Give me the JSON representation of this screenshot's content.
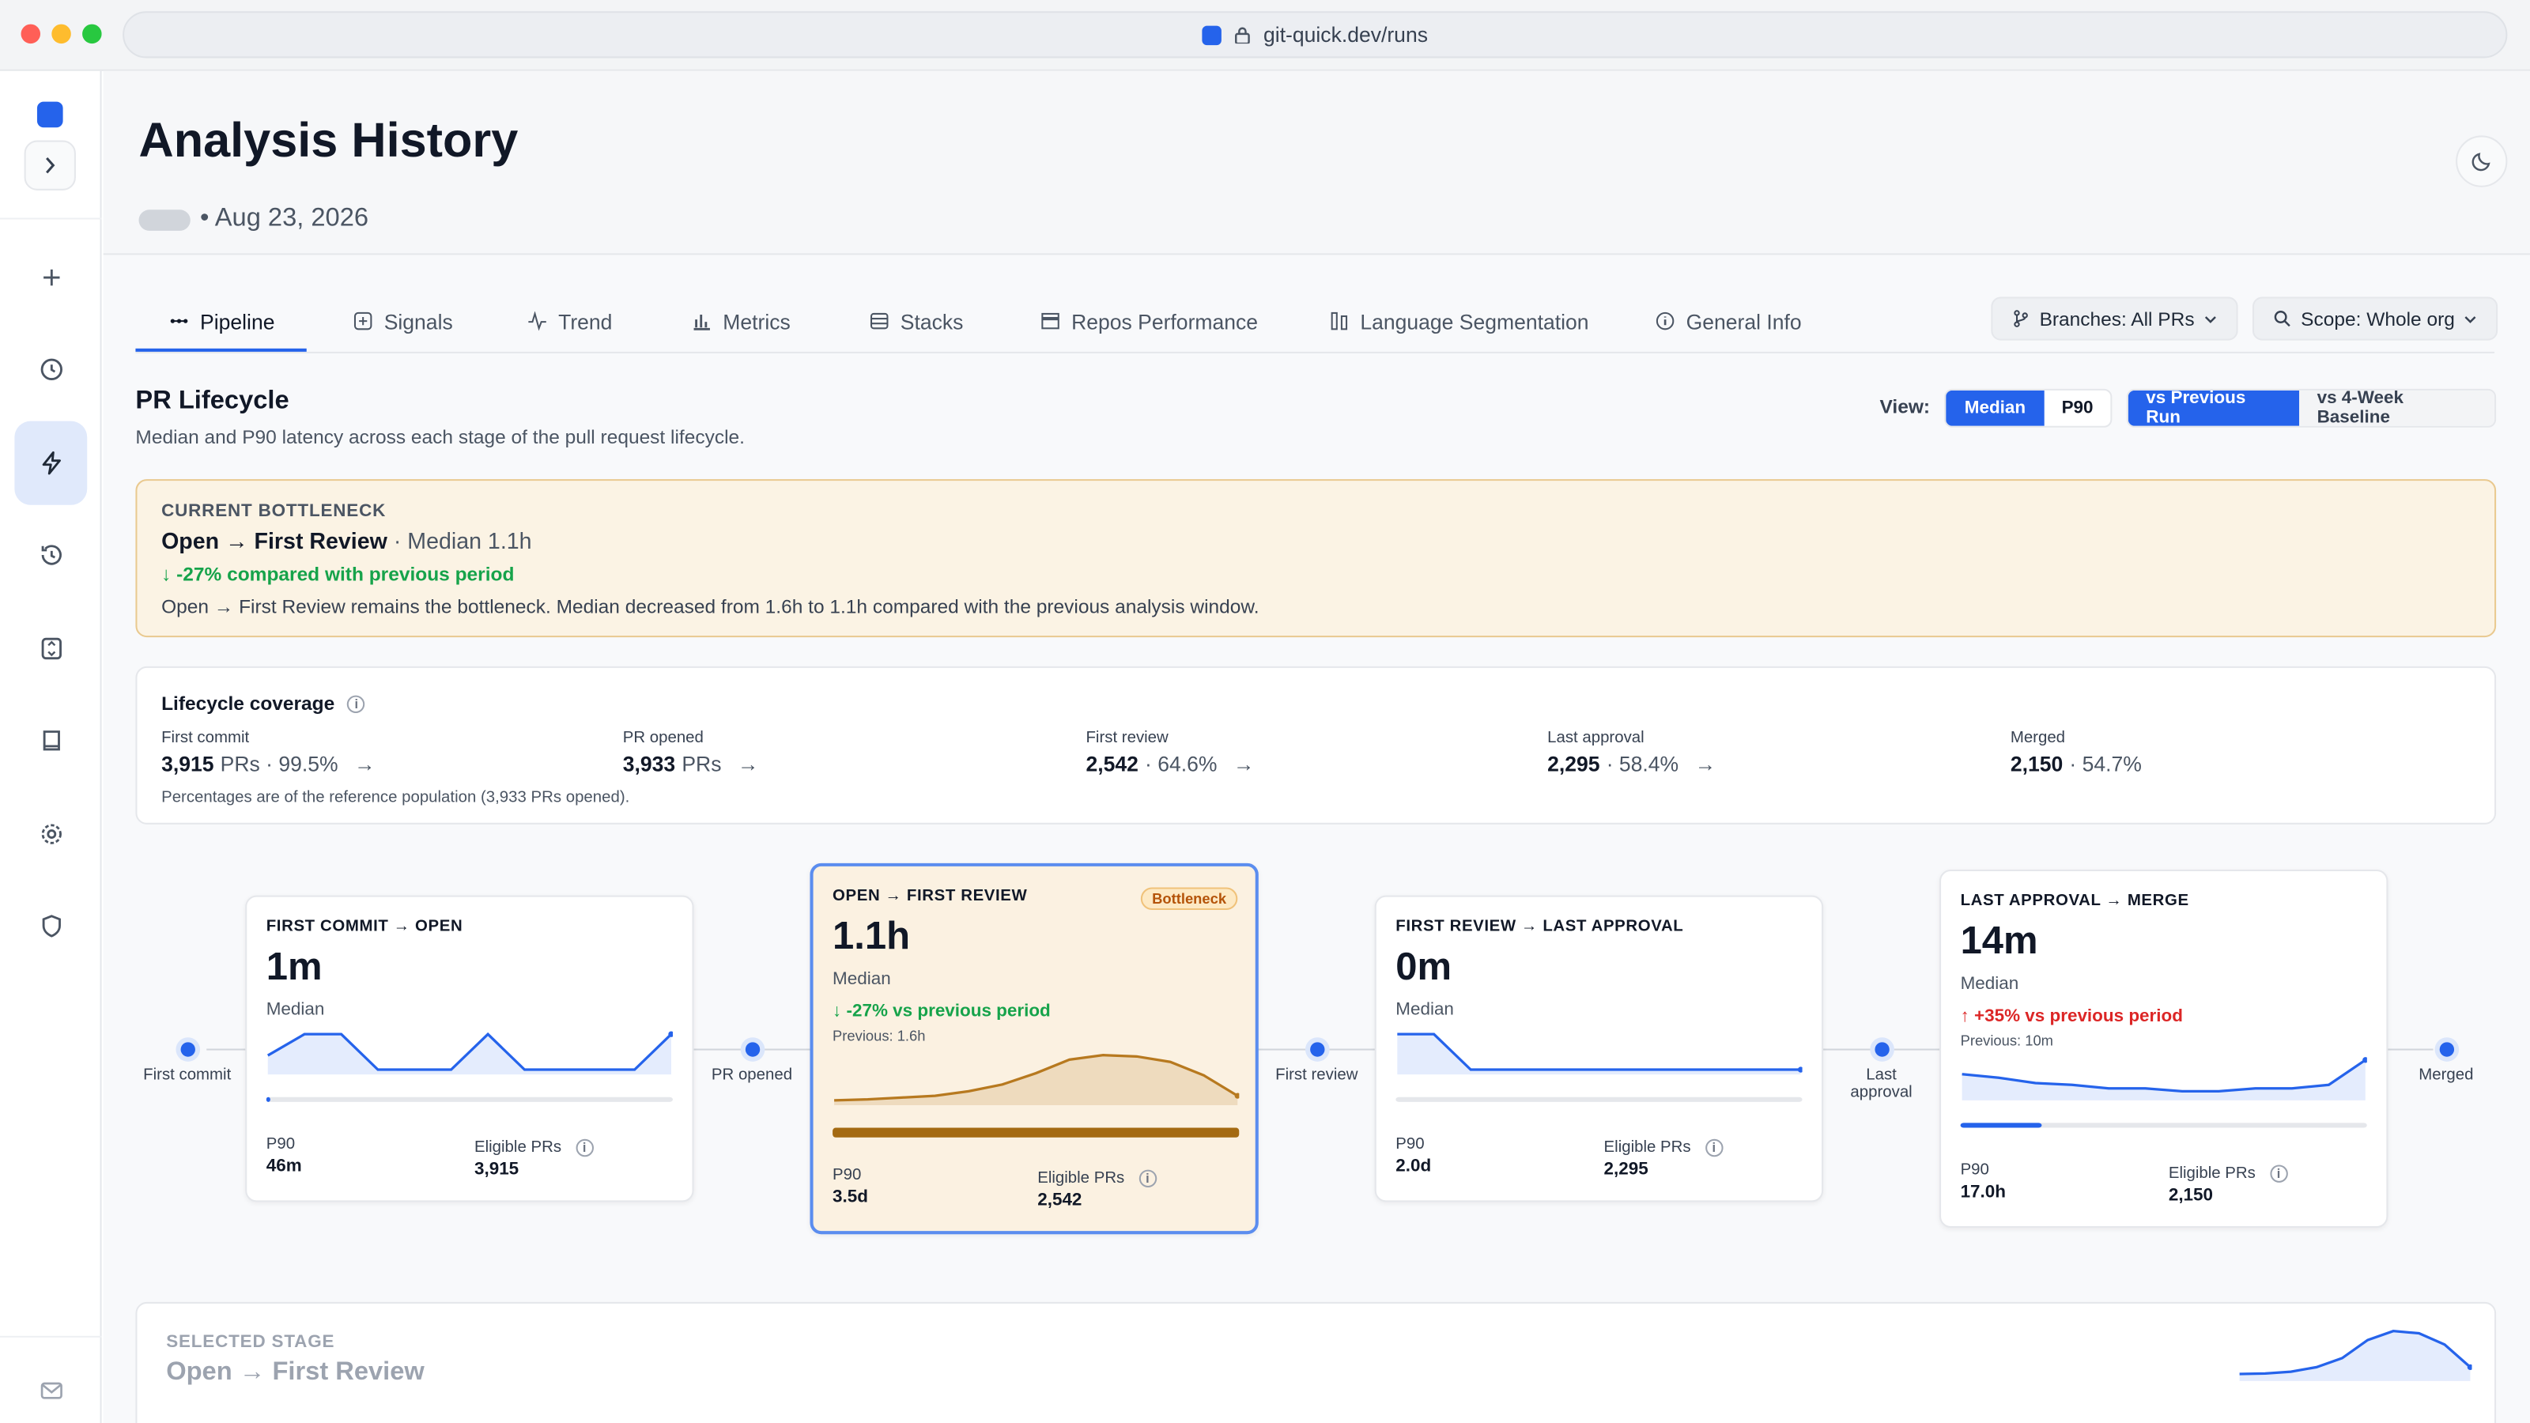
{
  "browser": {
    "url": "git-quick.dev/runs"
  },
  "header": {
    "title": "Analysis History",
    "date": "• Aug 23, 2026"
  },
  "tabs": [
    {
      "label": "Pipeline"
    },
    {
      "label": "Signals"
    },
    {
      "label": "Trend"
    },
    {
      "label": "Metrics"
    },
    {
      "label": "Stacks"
    },
    {
      "label": "Repos Performance"
    },
    {
      "label": "Language Segmentation"
    },
    {
      "label": "General Info"
    }
  ],
  "filters": {
    "branches": "Branches: All PRs",
    "scope": "Scope: Whole org"
  },
  "section": {
    "title": "PR Lifecycle",
    "description": "Median and P90 latency across each stage of the pull request lifecycle.",
    "view_label": "View:",
    "view_median": "Median",
    "view_p90": "P90",
    "cmp_prev": "vs Previous Run",
    "cmp_baseline": "vs 4-Week Baseline"
  },
  "bottleneck": {
    "label": "CURRENT BOTTLENECK",
    "stage": "Open → First Review",
    "median": " · Median 1.1h",
    "delta": "↓ -27% compared with previous period",
    "text": "Open → First Review remains the bottleneck. Median decreased from 1.6h to 1.1h compared with the previous analysis window."
  },
  "coverage": {
    "title": "Lifecycle coverage",
    "info": "i",
    "items": [
      {
        "label": "First commit",
        "value": "3,915",
        "unit": "PRs · 99.5%",
        "arrow": "→"
      },
      {
        "label": "PR opened",
        "value": "3,933",
        "unit": "PRs",
        "arrow": "→"
      },
      {
        "label": "First review",
        "value": "2,542",
        "unit": "· 64.6%",
        "arrow": "→"
      },
      {
        "label": "Last approval",
        "value": "2,295",
        "unit": "· 58.4%",
        "arrow": "→"
      },
      {
        "label": "Merged",
        "value": "2,150",
        "unit": "· 54.7%",
        "arrow": ""
      }
    ],
    "note": "Percentages are of the reference population (3,933 PRs opened)."
  },
  "nodes": [
    {
      "label": "First commit"
    },
    {
      "label": "PR opened"
    },
    {
      "label": "First review"
    },
    {
      "label": "Last approval"
    },
    {
      "label": "Merged"
    }
  ],
  "stages": [
    {
      "title": "FIRST COMMIT → OPEN",
      "value": "1m",
      "median_label": "Median",
      "p90_label": "P90",
      "p90": "46m",
      "eligible_label": "Eligible PRs",
      "eligible": "3,915",
      "progress": 0.01,
      "trend": [
        0.4,
        1.0,
        1.0,
        0.0,
        0.0,
        0.0,
        1.0,
        0.0,
        0.0,
        0.0,
        0.0,
        1.0
      ]
    },
    {
      "title": "OPEN → FIRST REVIEW",
      "value": "1.1h",
      "median_label": "Median",
      "badge": "Bottleneck",
      "delta": "↓ -27% vs previous period",
      "previous": "Previous: 1.6h",
      "p90_label": "P90",
      "p90": "3.5d",
      "eligible_label": "Eligible PRs",
      "eligible": "2,542",
      "progress": 1.0,
      "trend": [
        0.0,
        0.02,
        0.06,
        0.1,
        0.2,
        0.35,
        0.6,
        0.9,
        1.0,
        0.97,
        0.85,
        0.55,
        0.1
      ]
    },
    {
      "title": "FIRST REVIEW → LAST APPROVAL",
      "value": "0m",
      "median_label": "Median",
      "p90_label": "P90",
      "p90": "2.0d",
      "eligible_label": "Eligible PRs",
      "eligible": "2,295",
      "progress": 0.0,
      "trend": [
        1.0,
        1.0,
        0.0,
        0.0,
        0.0,
        0.0,
        0.0,
        0.0,
        0.0,
        0.0,
        0.0,
        0.0
      ]
    },
    {
      "title": "LAST APPROVAL → MERGE",
      "value": "14m",
      "median_label": "Median",
      "delta": "↑ +35% vs previous period",
      "previous": "Previous: 10m",
      "p90_label": "P90",
      "p90": "17.0h",
      "eligible_label": "Eligible PRs",
      "eligible": "2,150",
      "progress": 0.2,
      "trend": [
        0.6,
        0.5,
        0.35,
        0.3,
        0.2,
        0.2,
        0.12,
        0.12,
        0.2,
        0.2,
        0.3,
        1.0
      ]
    }
  ],
  "selected_stage": {
    "label": "SELECTED STAGE",
    "name": "Open → First Review",
    "trend": [
      0.05,
      0.06,
      0.1,
      0.2,
      0.4,
      0.8,
      1.0,
      0.95,
      0.7,
      0.2
    ]
  },
  "colors": {
    "accent": "#2563eb",
    "bottleneck": "#b7791f",
    "positive": "#16a34a",
    "negative": "#dc2626"
  }
}
